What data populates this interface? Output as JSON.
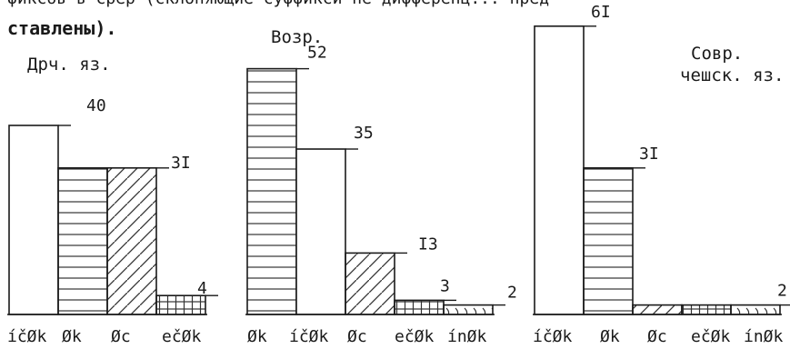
{
  "header": {
    "line1": "фиксов в срср (склоняемые суффиксы не дифференцированы) представлены).",
    "line1_visible": "фиксов в срер (склоняющие суффикси не дифференц... пред",
    "line2": "ставлены)."
  },
  "chart_data": [
    {
      "type": "bar",
      "title": "Дрч. яз.",
      "categories": [
        "íčØk",
        "Øk",
        "Øc",
        "ečØk"
      ],
      "values": [
        40,
        31,
        31,
        4
      ],
      "value_labels": [
        "40",
        "",
        "3I",
        "4"
      ],
      "hatch": [
        "none",
        "horizontal",
        "diagonal",
        "grid"
      ]
    },
    {
      "type": "bar",
      "title": "Возр.",
      "categories": [
        "Øk",
        "íčØk",
        "Øc",
        "ečØk",
        "ínØk"
      ],
      "values": [
        52,
        35,
        13,
        3,
        2
      ],
      "value_labels": [
        "52",
        "35",
        "I3",
        "3",
        "2"
      ],
      "hatch": [
        "horizontal",
        "none",
        "diagonal",
        "grid",
        "wave"
      ]
    },
    {
      "type": "bar",
      "title_lines": [
        "Совр.",
        "чешск. яз."
      ],
      "categories": [
        "íčØk",
        "Øk",
        "Øc",
        "ečØk",
        "ínØk"
      ],
      "values": [
        61,
        31,
        2,
        2,
        2
      ],
      "value_labels": [
        "6I",
        "3I",
        "",
        "",
        "2"
      ],
      "hatch": [
        "none",
        "horizontal",
        "diagonal",
        "grid",
        "wave"
      ]
    }
  ]
}
